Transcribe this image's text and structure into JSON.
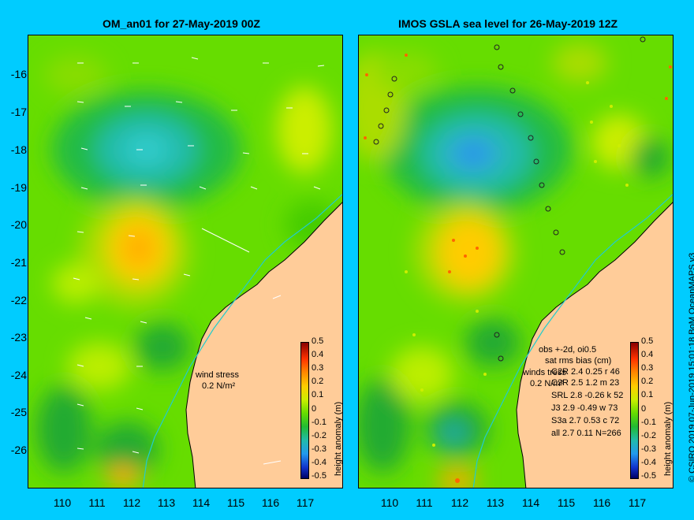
{
  "panels": {
    "left": {
      "title": "OM_an01 for 27-May-2019 00Z",
      "wind_label": "wind stress",
      "wind_value": "0.2 N/m²"
    },
    "right": {
      "title": "IMOS GSLA sea level  for 26-May-2019 12Z",
      "stats": [
        "obs +-2d, oi0.5",
        "sat rms bias (cm)",
        "C2R  2.4 0.25 r 46",
        "C2R   2.5 1.2 m 23",
        "SRL   2.8 -0.26 k 52",
        "J3     2.9 -0.49 w 73",
        "S3a   2.7 0.53 c 72",
        "all   2.7 0.11 N=266"
      ],
      "overlap_text": [
        "winds tress",
        "0.2 N/m²"
      ]
    }
  },
  "axes": {
    "lat_ticks": [
      "-16",
      "-17",
      "-18",
      "-19",
      "-20",
      "-21",
      "-22",
      "-23",
      "-24",
      "-25",
      "-26"
    ],
    "lon_ticks": [
      "110",
      "111",
      "112",
      "113",
      "114",
      "115",
      "116",
      "117"
    ]
  },
  "colorbar": {
    "title": "height anomaly (m)",
    "ticks": [
      "0.5",
      "0.4",
      "0.3",
      "0.2",
      "0.1",
      "0",
      "-0.1",
      "-0.2",
      "-0.3",
      "-0.4",
      "-0.5"
    ]
  },
  "credit": "© CSIRO 2019  07-Jun-2019 15:01:18 BoM OceanMAPS v3",
  "colors": {
    "background": "#00ccff",
    "land": "#ffcc99",
    "field": "#66dd00"
  }
}
